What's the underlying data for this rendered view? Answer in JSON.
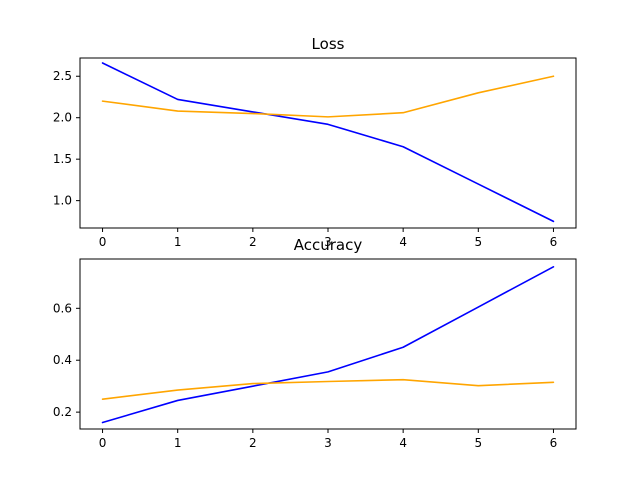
{
  "chart_data": [
    {
      "type": "line",
      "title": "Loss",
      "x": [
        0,
        1,
        2,
        3,
        4,
        5,
        6
      ],
      "xticks": [
        "0",
        "1",
        "2",
        "3",
        "4",
        "5",
        "6"
      ],
      "yticks": [
        "1.0",
        "1.5",
        "2.0",
        "2.5"
      ],
      "xlim": [
        -0.3,
        6.3
      ],
      "ylim": [
        0.67,
        2.72
      ],
      "grid": false,
      "series": [
        {
          "color": "#0000ff",
          "values": [
            2.66,
            2.22,
            2.07,
            1.92,
            1.65,
            1.2,
            0.75
          ]
        },
        {
          "color": "#ffa500",
          "values": [
            2.2,
            2.08,
            2.05,
            2.01,
            2.06,
            2.3,
            2.5
          ]
        }
      ]
    },
    {
      "type": "line",
      "title": "Accuracy",
      "x": [
        0,
        1,
        2,
        3,
        4,
        5,
        6
      ],
      "xticks": [
        "0",
        "1",
        "2",
        "3",
        "4",
        "5",
        "6"
      ],
      "yticks": [
        "0.2",
        "0.4",
        "0.6"
      ],
      "xlim": [
        -0.3,
        6.3
      ],
      "ylim": [
        0.135,
        0.79
      ],
      "grid": false,
      "series": [
        {
          "color": "#0000ff",
          "values": [
            0.16,
            0.245,
            0.3,
            0.355,
            0.45,
            0.605,
            0.76
          ]
        },
        {
          "color": "#ffa500",
          "values": [
            0.25,
            0.285,
            0.31,
            0.318,
            0.325,
            0.302,
            0.315
          ]
        }
      ]
    }
  ]
}
